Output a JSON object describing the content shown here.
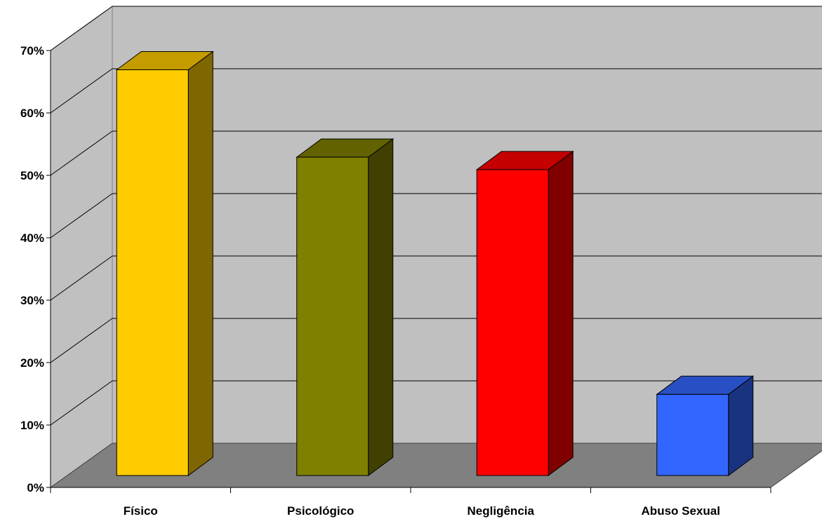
{
  "chart_data": {
    "type": "bar",
    "style": "3d-column",
    "categories": [
      "Físico",
      "Psicológico",
      "Negligência",
      "Abuso Sexual"
    ],
    "values": [
      65,
      51,
      49,
      13
    ],
    "colors": [
      "#FFCC00",
      "#808000",
      "#FF0000",
      "#3366FF"
    ],
    "side_colors": [
      "#806600",
      "#404000",
      "#800000",
      "#1A3380"
    ],
    "top_colors": [
      "#C49C00",
      "#626200",
      "#C40000",
      "#2850C4"
    ],
    "ylim": [
      0,
      70
    ],
    "yticks": [
      "0%",
      "10%",
      "20%",
      "30%",
      "40%",
      "50%",
      "60%",
      "70%"
    ],
    "grid": true,
    "wall_color": "#C0C0C0",
    "floor_color": "#808080",
    "title": "",
    "xlabel": "",
    "ylabel": ""
  }
}
